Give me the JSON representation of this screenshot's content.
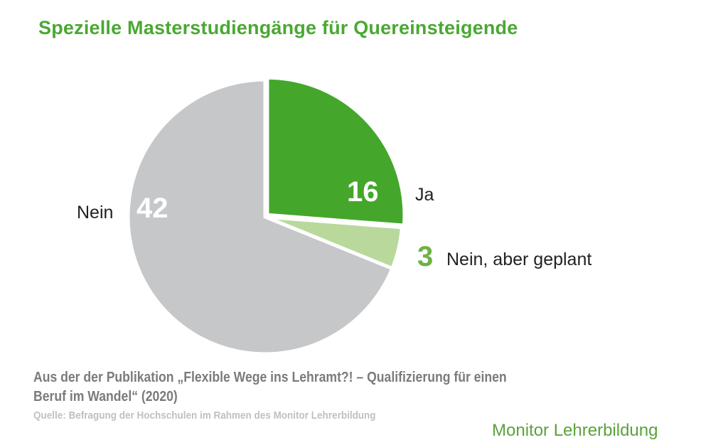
{
  "title": "Spezielle Masterstudiengänge für Quereinsteigende",
  "chart_data": {
    "type": "pie",
    "title": "Spezielle Masterstudiengänge für Quereinsteigende",
    "slices": [
      {
        "label": "Ja",
        "value": 16,
        "color": "#44a72b"
      },
      {
        "label": "Nein, aber geplant",
        "value": 3,
        "color": "#b9d99c"
      },
      {
        "label": "Nein",
        "value": 42,
        "color": "#c6c7c9"
      }
    ]
  },
  "footer": {
    "line1": "Aus der der Publikation „Flexible Wege ins Lehramt?! – Qualifizierung für einen",
    "line2": "Beruf im Wandel“ (2020)",
    "source": "Quelle: Befragung der Hochschulen im Rahmen des Monitor Lehrerbildung",
    "brand": "Monitor Lehrerbildung"
  }
}
